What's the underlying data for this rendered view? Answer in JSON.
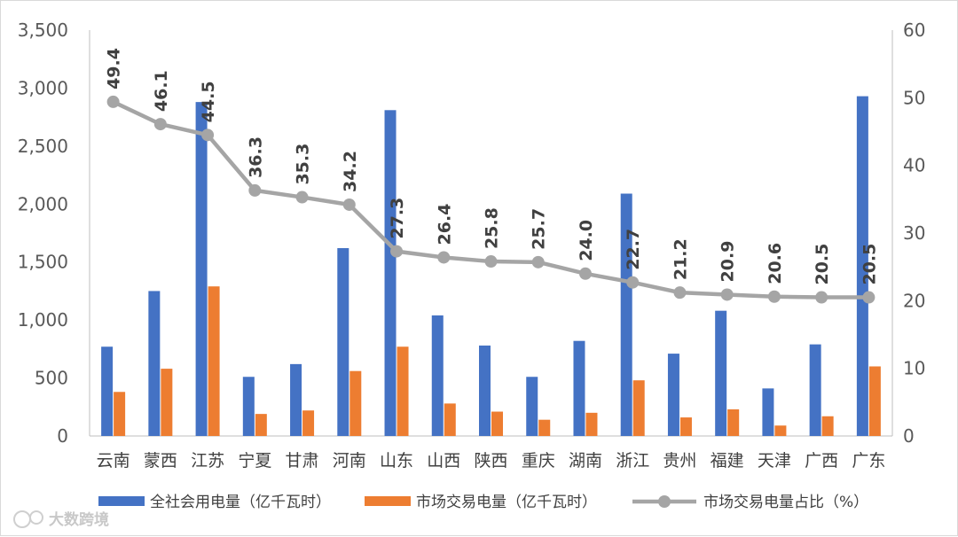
{
  "chart_data": {
    "type": "bar+line",
    "categories": [
      "云南",
      "蒙西",
      "江苏",
      "宁夏",
      "甘肃",
      "河南",
      "山东",
      "山西",
      "陕西",
      "重庆",
      "湖南",
      "浙江",
      "贵州",
      "福建",
      "天津",
      "广西",
      "广东"
    ],
    "series": [
      {
        "name": "全社会用电量（亿千瓦时）",
        "type": "bar",
        "axis": "left",
        "color": "#4472c4",
        "values": [
          770,
          1250,
          2880,
          510,
          620,
          1620,
          2810,
          1040,
          780,
          510,
          820,
          2090,
          710,
          1080,
          410,
          790,
          2930
        ]
      },
      {
        "name": "市场交易电量（亿千瓦时）",
        "type": "bar",
        "axis": "left",
        "color": "#ed7d31",
        "values": [
          380,
          580,
          1290,
          190,
          220,
          560,
          770,
          280,
          210,
          140,
          200,
          480,
          160,
          230,
          90,
          170,
          600
        ]
      },
      {
        "name": "市场交易电量占比（%）",
        "type": "line",
        "axis": "right",
        "color": "#a5a5a5",
        "values": [
          49.4,
          46.1,
          44.5,
          36.3,
          35.3,
          34.2,
          27.3,
          26.4,
          25.8,
          25.7,
          24.0,
          22.7,
          21.2,
          20.9,
          20.6,
          20.5,
          20.5
        ],
        "labels": [
          "49.4",
          "46.1",
          "44.5",
          "36.3",
          "35.3",
          "34.2",
          "27.3",
          "26.4",
          "25.8",
          "25.7",
          "24.0",
          "22.7",
          "21.2",
          "20.9",
          "20.6",
          "20.5",
          "20.5"
        ]
      }
    ],
    "y_left": {
      "ylim": [
        0,
        3500
      ],
      "ticks": [
        "0",
        "500",
        "1,000",
        "1,500",
        "2,000",
        "2,500",
        "3,000",
        "3,500"
      ]
    },
    "y_right": {
      "ylim": [
        0,
        60
      ],
      "ticks": [
        "0",
        "10",
        "20",
        "30",
        "40",
        "50",
        "60"
      ]
    },
    "legend_position": "bottom",
    "grid": false
  },
  "watermark": "大数跨境"
}
